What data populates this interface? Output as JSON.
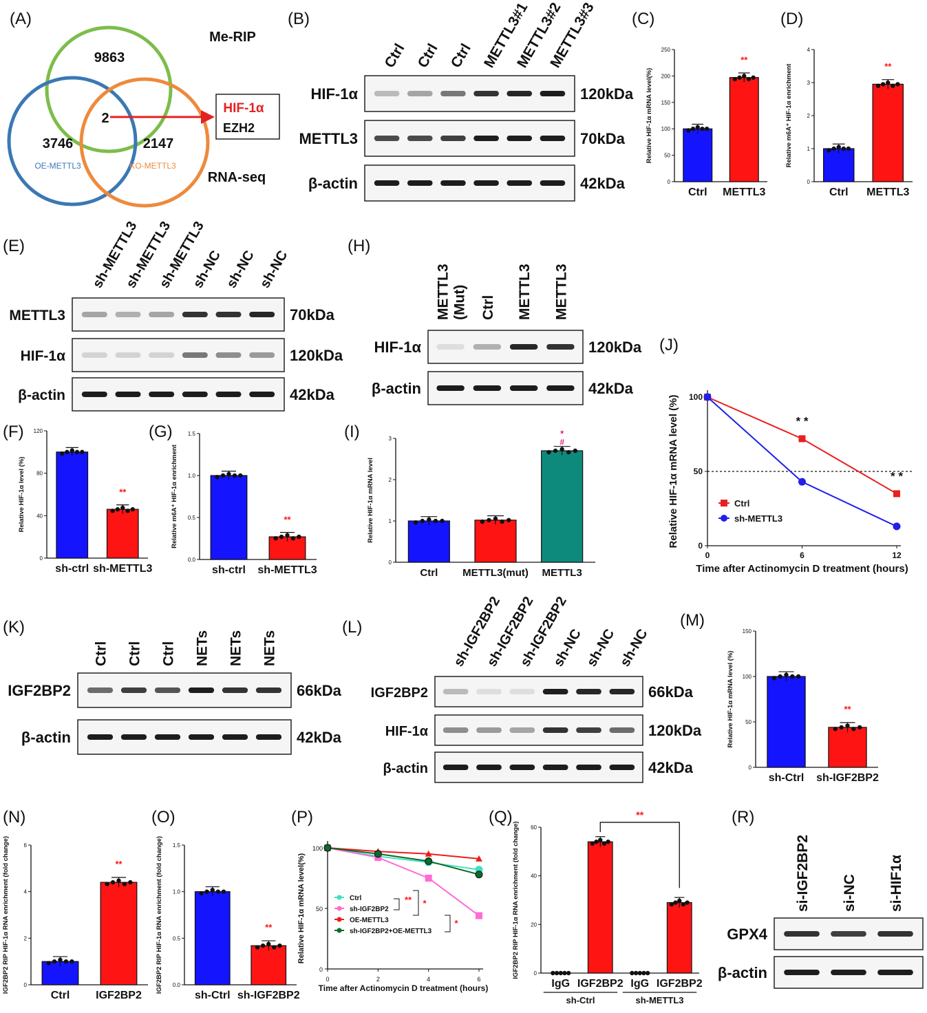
{
  "panel_labels": [
    "(A)",
    "(B)",
    "(C)",
    "(D)",
    "(E)",
    "(F)",
    "(G)",
    "(H)",
    "(I)",
    "(J)",
    "(K)",
    "(L)",
    "(M)",
    "(N)",
    "(O)",
    "(P)",
    "(Q)",
    "(R)"
  ],
  "venn": {
    "top_label": "Me-RIP",
    "bottom_label": "RNA-seq",
    "set_left": "OE-METTL3",
    "set_right": "KO-METTL3",
    "n_top": "9863",
    "n_left": "3746",
    "n_right": "2147",
    "n_center": "2",
    "genes": [
      "HIF-1α",
      "EZH2"
    ],
    "colors": {
      "top": "#7cbd4b",
      "left": "#3b78b4",
      "right": "#ee8a3c",
      "arrow": "#e52222"
    }
  },
  "blots": {
    "B": {
      "lanes": [
        "Ctrl",
        "Ctrl",
        "Ctrl",
        "METTL3#1",
        "METTL3#2",
        "METTL3#3"
      ],
      "rows": [
        {
          "name": "HIF-1α",
          "kda": "120kDa"
        },
        {
          "name": "METTL3",
          "kda": "70kDa"
        },
        {
          "name": "β-actin",
          "kda": "42kDa"
        }
      ]
    },
    "E": {
      "lanes": [
        "sh-METTL3",
        "sh-METTL3",
        "sh-METTL3",
        "sh-NC",
        "sh-NC",
        "sh-NC"
      ],
      "rows": [
        {
          "name": "METTL3",
          "kda": "70kDa"
        },
        {
          "name": "HIF-1α",
          "kda": "120kDa"
        },
        {
          "name": "β-actin",
          "kda": "42kDa"
        }
      ]
    },
    "H": {
      "lanes": [
        "METTL3\n(Mut)",
        "Ctrl",
        "METTL3",
        "METTL3"
      ],
      "rows": [
        {
          "name": "HIF-1α",
          "kda": "120kDa"
        },
        {
          "name": "β-actin",
          "kda": "42kDa"
        }
      ]
    },
    "K": {
      "lanes": [
        "Ctrl",
        "Ctrl",
        "Ctrl",
        "NETs",
        "NETs",
        "NETs"
      ],
      "rows": [
        {
          "name": "IGF2BP2",
          "kda": "66kDa"
        },
        {
          "name": "β-actin",
          "kda": "42kDa"
        }
      ]
    },
    "L": {
      "lanes": [
        "sh-IGF2BP2",
        "sh-IGF2BP2",
        "sh-IGF2BP2",
        "sh-NC",
        "sh-NC",
        "sh-NC"
      ],
      "rows": [
        {
          "name": "IGF2BP2",
          "kda": "66kDa"
        },
        {
          "name": "HIF-1α",
          "kda": "120kDa"
        },
        {
          "name": "β-actin",
          "kda": "42kDa"
        }
      ]
    },
    "R": {
      "lanes": [
        "si-IGF2BP2",
        "si-NC",
        "si-HIF1α"
      ],
      "rows": [
        {
          "name": "GPX4",
          "kda": ""
        },
        {
          "name": "β-actin",
          "kda": ""
        }
      ]
    }
  },
  "chart_data": [
    {
      "id": "C",
      "type": "bar",
      "categories": [
        "Ctrl",
        "METTL3"
      ],
      "values": [
        100,
        197
      ],
      "colors": [
        "#1414ff",
        "#ff1414"
      ],
      "ylabel": "Relative HIF-1α mRNA level(%)",
      "ylim": [
        0,
        250
      ],
      "yticks": [
        0,
        50,
        100,
        150,
        200,
        250
      ],
      "sig": "**"
    },
    {
      "id": "D",
      "type": "bar",
      "categories": [
        "Ctrl",
        "METTL3"
      ],
      "values": [
        1.0,
        2.95
      ],
      "colors": [
        "#1414ff",
        "#ff1414"
      ],
      "ylabel": "Relative m6A⁺ HIF-1α enrichment",
      "ylim": [
        0,
        4
      ],
      "yticks": [
        0,
        1,
        2,
        3,
        4
      ],
      "sig": "**"
    },
    {
      "id": "F",
      "type": "bar",
      "categories": [
        "sh-ctrl",
        "sh-METTL3"
      ],
      "values": [
        100,
        46
      ],
      "colors": [
        "#1414ff",
        "#ff1414"
      ],
      "ylabel": "Relative HIF-1α level (%)",
      "ylim": [
        0,
        120
      ],
      "yticks": [
        0,
        40,
        80,
        120
      ],
      "sig": "**"
    },
    {
      "id": "G",
      "type": "bar",
      "categories": [
        "sh-ctrl",
        "sh-METTL3"
      ],
      "values": [
        1.0,
        0.27
      ],
      "colors": [
        "#1414ff",
        "#ff1414"
      ],
      "ylabel": "Relative m6A⁺ HIF-1α enrichment",
      "ylim": [
        0,
        1.5
      ],
      "yticks": [
        "0.0",
        "0.5",
        "1.0",
        "1.5"
      ],
      "sig": "**"
    },
    {
      "id": "I",
      "type": "bar",
      "categories": [
        "Ctrl",
        "METTL3(mut)",
        "METTL3"
      ],
      "values": [
        1.0,
        1.02,
        2.7
      ],
      "colors": [
        "#1414ff",
        "#ff1414",
        "#0e8a7d"
      ],
      "ylabel": "Relative HIF-1α mRNA level",
      "ylim": [
        0,
        3
      ],
      "yticks": [
        0,
        1,
        2,
        3
      ],
      "sig": "*",
      "sig2": "#"
    },
    {
      "id": "J",
      "type": "line",
      "x": [
        0,
        6,
        12
      ],
      "series": [
        {
          "name": "Ctrl",
          "values": [
            100,
            72,
            35
          ],
          "color": "#e82020"
        },
        {
          "name": "sh-METTL3",
          "values": [
            100,
            43,
            13
          ],
          "color": "#2020e8"
        }
      ],
      "xlabel": "Time after Actinomycin D treatment (hours)",
      "ylabel": "Relative HIF-1α mRNA level (%)",
      "ylim": [
        0,
        100
      ],
      "yticks": [
        0,
        50,
        100
      ],
      "xticks": [
        0,
        6,
        12
      ],
      "sig": "* *"
    },
    {
      "id": "M",
      "type": "bar",
      "categories": [
        "sh-Ctrl",
        "sh-IGF2BP2"
      ],
      "values": [
        100,
        44
      ],
      "colors": [
        "#1414ff",
        "#ff1414"
      ],
      "ylabel": "Relative HIF-1α mRNA level (%)",
      "ylim": [
        0,
        150
      ],
      "yticks": [
        0,
        50,
        100,
        150
      ],
      "sig": "**"
    },
    {
      "id": "N",
      "type": "bar",
      "categories": [
        "Ctrl",
        "IGF2BP2"
      ],
      "values": [
        1.0,
        4.4
      ],
      "colors": [
        "#1414ff",
        "#ff1414"
      ],
      "ylabel": "IGF2BP2 RIP HIF-1α RNA enrichment (fold change)",
      "ylim": [
        0,
        6
      ],
      "yticks": [
        0,
        2,
        4,
        6
      ],
      "sig": "**"
    },
    {
      "id": "O",
      "type": "bar",
      "categories": [
        "sh-Ctrl",
        "sh-IGF2BP2"
      ],
      "values": [
        1.0,
        0.42
      ],
      "colors": [
        "#1414ff",
        "#ff1414"
      ],
      "ylabel": "IGF2BP2 RIP HIF-1α RNA enrichment (fold change)",
      "ylim": [
        0,
        1.5
      ],
      "yticks": [
        "0.0",
        "0.5",
        "1.0",
        "1.5"
      ],
      "sig": "**"
    },
    {
      "id": "P",
      "type": "line",
      "x": [
        0,
        2,
        4,
        6
      ],
      "series": [
        {
          "name": "Ctrl",
          "values": [
            100,
            93,
            88,
            82
          ],
          "color": "#3fe0c0"
        },
        {
          "name": "sh-IGF2BP2",
          "values": [
            100,
            92,
            75,
            44
          ],
          "color": "#ff6ad5"
        },
        {
          "name": "OE-METTL3",
          "values": [
            100,
            97,
            95,
            91
          ],
          "color": "#ee1c1c"
        },
        {
          "name": "sh-IGF2BP2+OE-METTL3",
          "values": [
            100,
            95,
            89,
            78
          ],
          "color": "#0b6b2a"
        }
      ],
      "xlabel": "Time after Actinomycin D treatment (hours)",
      "ylabel": "Relative HIF-1α mRNA level(%)",
      "ylim": [
        0,
        100
      ],
      "yticks": [
        0,
        50,
        100
      ],
      "xticks": [
        0,
        2,
        4,
        6
      ],
      "sig": "**",
      "sig2": "*"
    },
    {
      "id": "Q",
      "type": "bar",
      "categories": [
        "IgG",
        "IGF2BP2",
        "IgG",
        "IGF2BP2"
      ],
      "groups": [
        "sh-Ctrl",
        "sh-METTL3"
      ],
      "values": [
        0,
        54,
        0,
        29
      ],
      "colors": [
        "#ff1414",
        "#ff1414",
        "#ff1414",
        "#ff1414"
      ],
      "ylabel": "IGF2BP2 RIP HIF-1α RNA enrichment (fold change)",
      "ylim": [
        0,
        60
      ],
      "yticks": [
        0,
        20,
        40,
        60
      ],
      "sig": "**"
    }
  ]
}
